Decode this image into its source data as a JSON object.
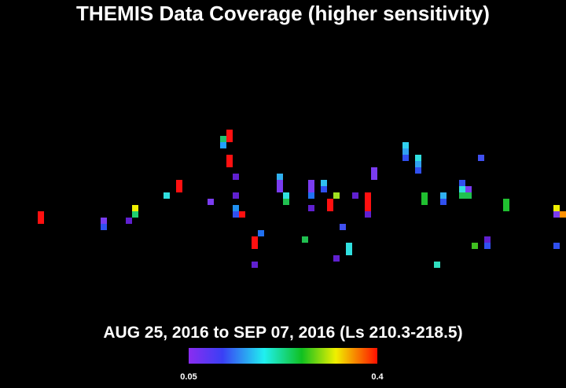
{
  "title": "THEMIS Data Coverage (higher sensitivity)",
  "subtitle": "AUG 25, 2016 to SEP 07, 2016 (Ls 210.3-218.5)",
  "colorbar": {
    "labels": [
      "0.05",
      "0.4"
    ]
  }
}
